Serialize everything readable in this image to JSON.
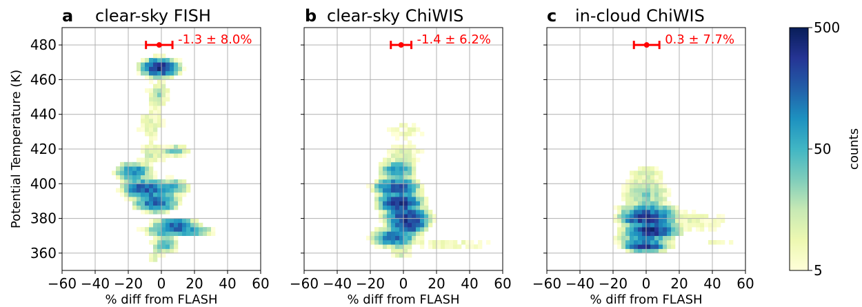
{
  "chart_data": [
    {
      "type": "heatmap",
      "panel_letter": "a",
      "title": "clear-sky FISH",
      "xlabel": "% diff from FLASH",
      "ylabel": "Potential Temperature (K)",
      "xlim": [
        -60,
        60
      ],
      "ylim": [
        350,
        490
      ],
      "xticks": [
        "−60",
        "−40",
        "−20",
        "0",
        "20",
        "40",
        "60"
      ],
      "yticks": [
        "360",
        "380",
        "400",
        "420",
        "440",
        "460",
        "480"
      ],
      "grid": true,
      "annotation": "-1.3 ± 8.0%",
      "errorbar": {
        "theta": 480,
        "mean": -1.3,
        "sd": 8.0
      },
      "blobs": [
        {
          "theta": 467,
          "center": -1,
          "sigma_x": 5,
          "sigma_y": 2.5,
          "peak": 330
        },
        {
          "theta": 452,
          "center": -2,
          "sigma_x": 4,
          "sigma_y": 4,
          "peak": 22
        },
        {
          "theta": 434,
          "center": -6,
          "sigma_x": 6,
          "sigma_y": 7,
          "peak": 10
        },
        {
          "theta": 419,
          "center": 9,
          "sigma_x": 4,
          "sigma_y": 1.5,
          "peak": 45
        },
        {
          "theta": 417,
          "center": -5,
          "sigma_x": 5,
          "sigma_y": 4,
          "peak": 14
        },
        {
          "theta": 407,
          "center": -17,
          "sigma_x": 5,
          "sigma_y": 2.5,
          "peak": 110
        },
        {
          "theta": 397,
          "center": -10,
          "sigma_x": 6,
          "sigma_y": 2.5,
          "peak": 200
        },
        {
          "theta": 398,
          "center": 5,
          "sigma_x": 6,
          "sigma_y": 2.5,
          "peak": 60
        },
        {
          "theta": 389,
          "center": -3,
          "sigma_x": 6,
          "sigma_y": 2.5,
          "peak": 160
        },
        {
          "theta": 377,
          "center": 8,
          "sigma_x": 6,
          "sigma_y": 1.5,
          "peak": 140
        },
        {
          "theta": 373,
          "center": 10,
          "sigma_x": 9,
          "sigma_y": 1.5,
          "peak": 130
        },
        {
          "theta": 365,
          "center": 2,
          "sigma_x": 4,
          "sigma_y": 3,
          "peak": 45
        },
        {
          "theta": 358,
          "center": -4,
          "sigma_x": 3,
          "sigma_y": 2,
          "peak": 12
        }
      ]
    },
    {
      "type": "heatmap",
      "panel_letter": "b",
      "title": "clear-sky ChiWIS",
      "xlabel": "% diff from FLASH",
      "xlim": [
        -60,
        60
      ],
      "ylim": [
        350,
        490
      ],
      "xticks": [
        "−60",
        "−40",
        "−20",
        "0",
        "20",
        "40",
        "60"
      ],
      "grid": true,
      "annotation": "-1.4 ± 6.2%",
      "errorbar": {
        "theta": 480,
        "mean": -1.4,
        "sd": 6.2
      },
      "blobs": [
        {
          "theta": 431,
          "center": 2,
          "sigma_x": 9,
          "sigma_y": 4,
          "peak": 8
        },
        {
          "theta": 417,
          "center": 0,
          "sigma_x": 8,
          "sigma_y": 4,
          "peak": 12
        },
        {
          "theta": 408,
          "center": -4,
          "sigma_x": 5,
          "sigma_y": 2.5,
          "peak": 90
        },
        {
          "theta": 398,
          "center": -4,
          "sigma_x": 6,
          "sigma_y": 2.5,
          "peak": 220
        },
        {
          "theta": 389,
          "center": -2,
          "sigma_x": 6,
          "sigma_y": 2.5,
          "peak": 280
        },
        {
          "theta": 381,
          "center": 2,
          "sigma_x": 6,
          "sigma_y": 2.5,
          "peak": 250
        },
        {
          "theta": 376,
          "center": 3,
          "sigma_x": 5,
          "sigma_y": 2.5,
          "peak": 260
        },
        {
          "theta": 369,
          "center": -6,
          "sigma_x": 6,
          "sigma_y": 2.5,
          "peak": 140
        },
        {
          "theta": 365,
          "center": 28,
          "sigma_x": 18,
          "sigma_y": 2,
          "peak": 9
        },
        {
          "theta": 360,
          "center": -2,
          "sigma_x": 4,
          "sigma_y": 2,
          "peak": 16
        }
      ]
    },
    {
      "type": "heatmap",
      "panel_letter": "c",
      "title": "in-cloud ChiWIS",
      "xlabel": "% diff from FLASH",
      "xlim": [
        -60,
        60
      ],
      "ylim": [
        350,
        490
      ],
      "xticks": [
        "−60",
        "−40",
        "−20",
        "0",
        "20",
        "40",
        "60"
      ],
      "grid": true,
      "annotation": "0.3 ± 7.7%",
      "errorbar": {
        "theta": 480,
        "mean": 0.3,
        "sd": 7.7
      },
      "blobs": [
        {
          "theta": 405,
          "center": 0,
          "sigma_x": 7,
          "sigma_y": 4,
          "peak": 12
        },
        {
          "theta": 394,
          "center": 0,
          "sigma_x": 8,
          "sigma_y": 4,
          "peak": 28
        },
        {
          "theta": 384,
          "center": 1,
          "sigma_x": 8,
          "sigma_y": 2.5,
          "peak": 90
        },
        {
          "theta": 380,
          "center": 0,
          "sigma_x": 7,
          "sigma_y": 2,
          "peak": 300
        },
        {
          "theta": 373,
          "center": 3,
          "sigma_x": 7,
          "sigma_y": 2,
          "peak": 330
        },
        {
          "theta": 378,
          "center": 30,
          "sigma_x": 15,
          "sigma_y": 4,
          "peak": 9
        },
        {
          "theta": 368,
          "center": -2,
          "sigma_x": 8,
          "sigma_y": 2,
          "peak": 60
        },
        {
          "theta": 364,
          "center": 0,
          "sigma_x": 6,
          "sigma_y": 1.5,
          "peak": 240
        },
        {
          "theta": 366,
          "center": 45,
          "sigma_x": 10,
          "sigma_y": 2,
          "peak": 7
        }
      ]
    }
  ],
  "colorbar": {
    "label": "counts",
    "scale": "log",
    "min": 5,
    "max": 500,
    "ticks": [
      "500",
      "50",
      "5"
    ],
    "colors": [
      "#ffffd9",
      "#edf8b1",
      "#c7e9b4",
      "#7fcdbb",
      "#41b6c4",
      "#1d91c0",
      "#225ea8",
      "#253494",
      "#081d58"
    ]
  },
  "colors": {
    "annotation": "#ff0000",
    "grid": "#b0b0b0",
    "axis": "#000000"
  }
}
